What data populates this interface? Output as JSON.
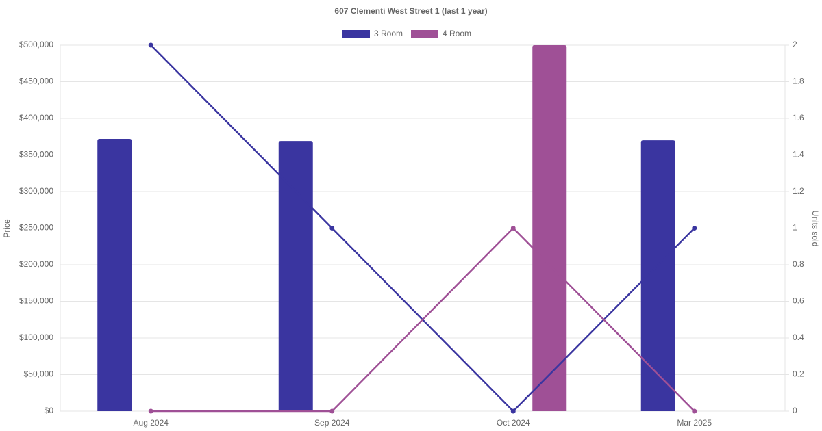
{
  "chart_data": {
    "type": "bar-line",
    "title": "607 Clementi West Street 1 (last 1 year)",
    "y_label": "Price",
    "y2_label": "Units sold",
    "categories": [
      "Aug 2024",
      "Sep 2024",
      "Oct 2024",
      "Mar 2025"
    ],
    "series": [
      {
        "name": "3 Room",
        "color": "#3a35a0",
        "values": [
          372000,
          369000,
          null,
          370000
        ],
        "y2_values": [
          2,
          1,
          0,
          1
        ]
      },
      {
        "name": "4 Room",
        "color": "#9f5096",
        "values": [
          null,
          null,
          500000,
          null
        ],
        "y2_values": [
          0,
          0,
          1,
          0
        ]
      }
    ],
    "ylim": [
      0,
      500000
    ],
    "yticks": [
      {
        "value": 0,
        "label": "$0"
      },
      {
        "value": 50000,
        "label": "$50,000"
      },
      {
        "value": 100000,
        "label": "$100,000"
      },
      {
        "value": 150000,
        "label": "$150,000"
      },
      {
        "value": 200000,
        "label": "$200,000"
      },
      {
        "value": 250000,
        "label": "$250,000"
      },
      {
        "value": 300000,
        "label": "$300,000"
      },
      {
        "value": 350000,
        "label": "$350,000"
      },
      {
        "value": 400000,
        "label": "$400,000"
      },
      {
        "value": 450000,
        "label": "$450,000"
      },
      {
        "value": 500000,
        "label": "$500,000"
      }
    ],
    "y2lim": [
      0,
      2
    ],
    "y2ticks": [
      0,
      0.2,
      0.4,
      0.6,
      0.8,
      1,
      1.2,
      1.4,
      1.6,
      1.8,
      2
    ],
    "grid": true,
    "legend": "top"
  }
}
